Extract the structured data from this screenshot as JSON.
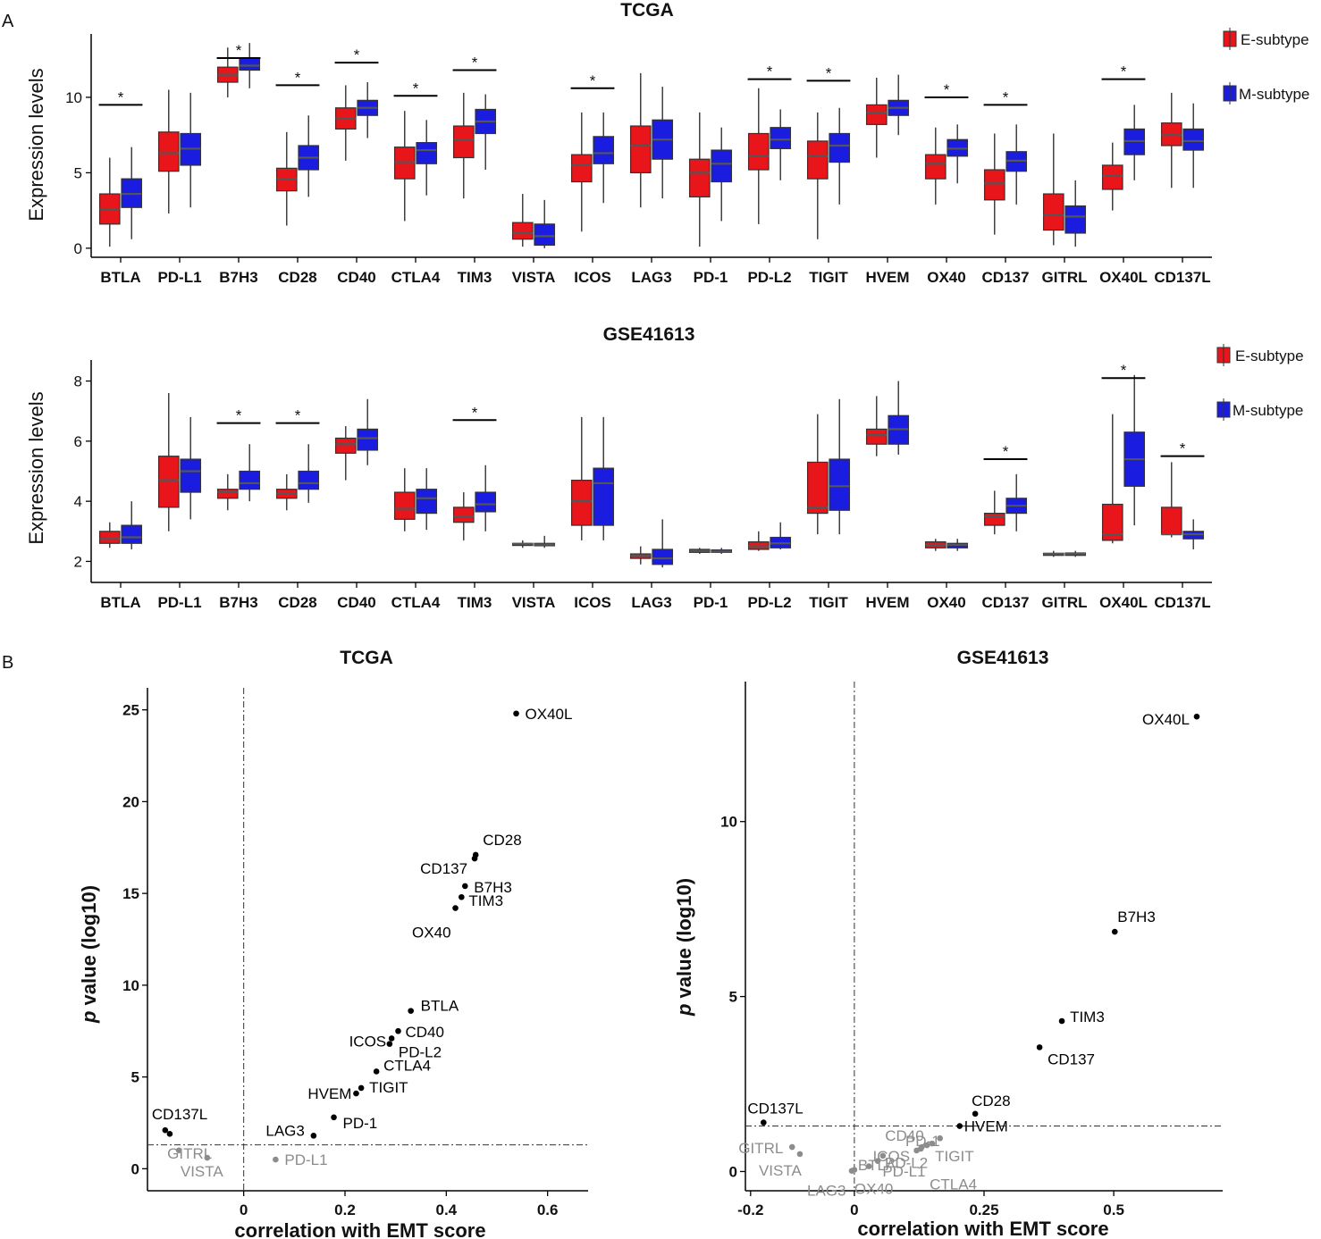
{
  "panels": {
    "a": "A",
    "b": "B"
  },
  "legend": {
    "items": [
      {
        "name": "E-subtype",
        "color": "#e8151b"
      },
      {
        "name": "M-subtype",
        "color": "#1a1de0"
      }
    ]
  },
  "colors": {
    "e": "#e8151b",
    "m": "#1a1de0",
    "sig": "#000000",
    "nonsig": "#8c8c8c"
  },
  "chart_data": [
    {
      "type": "box",
      "title": "TCGA",
      "ylabel": "Expression levels",
      "ylim": [
        -0.6,
        14.2
      ],
      "yticks": [
        0,
        5,
        10
      ],
      "categories": [
        "BTLA",
        "PD-L1",
        "B7H3",
        "CD28",
        "CD40",
        "CTLA4",
        "TIM3",
        "VISTA",
        "ICOS",
        "LAG3",
        "PD-1",
        "PD-L2",
        "TIGIT",
        "HVEM",
        "OX40",
        "CD137",
        "GITRL",
        "OX40L",
        "CD137L"
      ],
      "significant": [
        true,
        false,
        true,
        true,
        true,
        true,
        true,
        false,
        true,
        false,
        false,
        true,
        true,
        false,
        true,
        true,
        false,
        true,
        false
      ],
      "sig_y": [
        9.5,
        null,
        12.6,
        10.8,
        12.3,
        10.1,
        11.8,
        null,
        10.6,
        null,
        null,
        11.2,
        11.1,
        null,
        10.0,
        9.5,
        null,
        11.2,
        null
      ],
      "series": [
        {
          "name": "E-subtype",
          "boxes": [
            [
              0.1,
              1.6,
              2.6,
              3.6,
              6.0
            ],
            [
              2.3,
              5.1,
              6.3,
              7.7,
              10.5
            ],
            [
              10.0,
              11.0,
              11.5,
              12.0,
              13.3
            ],
            [
              1.5,
              3.8,
              4.6,
              5.3,
              7.7
            ],
            [
              5.8,
              7.9,
              8.6,
              9.3,
              10.8
            ],
            [
              1.8,
              4.6,
              5.7,
              6.7,
              9.1
            ],
            [
              3.3,
              6.0,
              7.2,
              8.1,
              10.3
            ],
            [
              0.1,
              0.6,
              1.0,
              1.7,
              3.6
            ],
            [
              1.1,
              4.4,
              5.5,
              6.2,
              9.0
            ],
            [
              2.7,
              5.0,
              6.8,
              8.1,
              11.6
            ],
            [
              0.1,
              3.4,
              5.0,
              5.9,
              9.0
            ],
            [
              1.6,
              5.2,
              6.1,
              7.6,
              10.6
            ],
            [
              0.6,
              4.6,
              6.1,
              7.1,
              9.0
            ],
            [
              6.0,
              8.2,
              9.0,
              9.5,
              11.3
            ],
            [
              2.9,
              4.6,
              5.6,
              6.2,
              8.0
            ],
            [
              0.9,
              3.2,
              4.3,
              5.2,
              7.6
            ],
            [
              0.2,
              1.2,
              2.2,
              3.6,
              7.6
            ],
            [
              2.5,
              3.9,
              4.8,
              5.5,
              7.0
            ],
            [
              4.0,
              6.8,
              7.5,
              8.3,
              10.3
            ]
          ]
        },
        {
          "name": "M-subtype",
          "boxes": [
            [
              0.6,
              2.7,
              3.6,
              4.6,
              6.7
            ],
            [
              2.7,
              5.5,
              6.6,
              7.6,
              10.3
            ],
            [
              10.6,
              11.8,
              12.1,
              12.6,
              13.6
            ],
            [
              3.4,
              5.2,
              6.0,
              6.8,
              8.8
            ],
            [
              7.3,
              8.8,
              9.3,
              9.8,
              11.0
            ],
            [
              3.5,
              5.6,
              6.5,
              7.0,
              8.5
            ],
            [
              5.2,
              7.6,
              8.4,
              9.2,
              10.2
            ],
            [
              0.0,
              0.2,
              0.8,
              1.6,
              3.2
            ],
            [
              3.0,
              5.6,
              6.3,
              7.4,
              9.0
            ],
            [
              3.3,
              5.9,
              7.2,
              8.5,
              10.7
            ],
            [
              1.8,
              4.4,
              5.6,
              6.5,
              8.0
            ],
            [
              4.5,
              6.6,
              7.2,
              8.0,
              9.2
            ],
            [
              2.9,
              5.7,
              6.8,
              7.6,
              9.3
            ],
            [
              7.5,
              8.8,
              9.3,
              9.8,
              11.5
            ],
            [
              4.3,
              6.1,
              6.6,
              7.2,
              8.2
            ],
            [
              2.9,
              5.1,
              5.8,
              6.4,
              8.2
            ],
            [
              0.1,
              1.0,
              2.1,
              2.8,
              4.5
            ],
            [
              4.5,
              6.2,
              7.1,
              7.9,
              9.5
            ],
            [
              4.0,
              6.5,
              7.1,
              7.9,
              9.6
            ]
          ]
        }
      ]
    },
    {
      "type": "box",
      "title": "GSE41613",
      "ylabel": "Expression levels",
      "ylim": [
        1.3,
        8.7
      ],
      "yticks": [
        2,
        4,
        6,
        8
      ],
      "categories": [
        "BTLA",
        "PD-L1",
        "B7H3",
        "CD28",
        "CD40",
        "CTLA4",
        "TIM3",
        "VISTA",
        "ICOS",
        "LAG3",
        "PD-1",
        "PD-L2",
        "TIGIT",
        "HVEM",
        "OX40",
        "CD137",
        "GITRL",
        "OX40L",
        "CD137L"
      ],
      "significant": [
        false,
        false,
        true,
        true,
        false,
        false,
        true,
        false,
        false,
        false,
        false,
        false,
        false,
        false,
        false,
        true,
        false,
        true,
        true
      ],
      "sig_y": [
        null,
        null,
        6.6,
        6.6,
        null,
        null,
        6.7,
        null,
        null,
        null,
        null,
        null,
        null,
        null,
        null,
        5.4,
        null,
        8.1,
        5.5
      ],
      "series": [
        {
          "name": "E-subtype",
          "boxes": [
            [
              2.45,
              2.6,
              2.75,
              3.0,
              3.3
            ],
            [
              3.0,
              3.8,
              4.7,
              5.5,
              7.6
            ],
            [
              3.7,
              4.1,
              4.3,
              4.4,
              4.9
            ],
            [
              3.7,
              4.1,
              4.25,
              4.4,
              4.9
            ],
            [
              4.7,
              5.6,
              5.9,
              6.1,
              6.5
            ],
            [
              3.0,
              3.4,
              3.75,
              4.3,
              5.1
            ],
            [
              2.7,
              3.3,
              3.5,
              3.8,
              4.3
            ],
            [
              2.45,
              2.53,
              2.58,
              2.6,
              2.7
            ],
            [
              2.7,
              3.2,
              4.0,
              4.7,
              6.8
            ],
            [
              1.9,
              2.1,
              2.2,
              2.25,
              2.5
            ],
            [
              2.25,
              2.3,
              2.35,
              2.4,
              2.45
            ],
            [
              2.35,
              2.4,
              2.5,
              2.65,
              3.0
            ],
            [
              2.9,
              3.6,
              3.8,
              5.3,
              6.9
            ],
            [
              5.5,
              5.9,
              6.2,
              6.4,
              7.5
            ],
            [
              2.35,
              2.45,
              2.55,
              2.65,
              2.75
            ],
            [
              2.9,
              3.2,
              3.5,
              3.6,
              4.35
            ],
            [
              2.15,
              2.2,
              2.25,
              2.27,
              2.35
            ],
            [
              2.6,
              2.7,
              2.9,
              3.9,
              6.9
            ],
            [
              2.8,
              2.9,
              2.9,
              3.8,
              5.3
            ]
          ]
        },
        {
          "name": "M-subtype",
          "boxes": [
            [
              2.4,
              2.6,
              2.8,
              3.2,
              4.0
            ],
            [
              3.4,
              4.3,
              5.0,
              5.4,
              6.8
            ],
            [
              4.0,
              4.4,
              4.6,
              5.0,
              5.9
            ],
            [
              3.95,
              4.4,
              4.6,
              5.0,
              5.9
            ],
            [
              5.2,
              5.7,
              6.1,
              6.4,
              7.4
            ],
            [
              3.05,
              3.6,
              4.1,
              4.4,
              5.1
            ],
            [
              3.0,
              3.65,
              3.9,
              4.3,
              5.2
            ],
            [
              2.45,
              2.52,
              2.56,
              2.6,
              2.85
            ],
            [
              2.7,
              3.2,
              4.6,
              5.1,
              6.8
            ],
            [
              1.8,
              1.9,
              2.1,
              2.4,
              3.4
            ],
            [
              2.25,
              2.3,
              2.33,
              2.38,
              2.45
            ],
            [
              2.4,
              2.45,
              2.6,
              2.8,
              3.3
            ],
            [
              2.9,
              3.7,
              4.5,
              5.4,
              7.4
            ],
            [
              5.55,
              5.9,
              6.4,
              6.85,
              8.0
            ],
            [
              2.35,
              2.45,
              2.55,
              2.6,
              2.75
            ],
            [
              3.0,
              3.6,
              3.85,
              4.1,
              4.9
            ],
            [
              2.15,
              2.2,
              2.25,
              2.28,
              2.35
            ],
            [
              3.2,
              4.5,
              5.4,
              6.3,
              8.2
            ],
            [
              2.4,
              2.75,
              2.9,
              3.0,
              3.4
            ]
          ]
        }
      ]
    },
    {
      "type": "scatter",
      "title": "TCGA",
      "xlabel": "correlation with EMT score",
      "ylabel_italic": "p",
      "ylabel_rest": " value (log10)",
      "xlim": [
        -0.19,
        0.68
      ],
      "ylim": [
        -1.2,
        26.2
      ],
      "xticks": [
        0,
        0.2,
        0.4,
        0.6
      ],
      "yticks": [
        0,
        5,
        10,
        15,
        20,
        25
      ],
      "vline": 0,
      "hline": 1.3,
      "points": [
        {
          "label": "OX40L",
          "x": 0.538,
          "y": 24.8,
          "sig": true
        },
        {
          "label": "CD28",
          "x": 0.458,
          "y": 17.1,
          "sig": true
        },
        {
          "label": "CD137",
          "x": 0.456,
          "y": 16.9,
          "sig": true
        },
        {
          "label": "B7H3",
          "x": 0.437,
          "y": 15.4,
          "sig": true
        },
        {
          "label": "TIM3",
          "x": 0.43,
          "y": 14.8,
          "sig": true
        },
        {
          "label": "OX40",
          "x": 0.418,
          "y": 14.2,
          "sig": true
        },
        {
          "label": "BTLA",
          "x": 0.33,
          "y": 8.6,
          "sig": true
        },
        {
          "label": "CD40",
          "x": 0.305,
          "y": 7.5,
          "sig": true
        },
        {
          "label": "ICOS",
          "x": 0.292,
          "y": 7.1,
          "sig": true
        },
        {
          "label": "PD-L2",
          "x": 0.288,
          "y": 6.8,
          "sig": true
        },
        {
          "label": "CTLA4",
          "x": 0.262,
          "y": 5.3,
          "sig": true
        },
        {
          "label": "TIGIT",
          "x": 0.232,
          "y": 4.4,
          "sig": true
        },
        {
          "label": "HVEM",
          "x": 0.222,
          "y": 4.1,
          "sig": true
        },
        {
          "label": "PD-1",
          "x": 0.178,
          "y": 2.8,
          "sig": true
        },
        {
          "label": "LAG3",
          "x": 0.138,
          "y": 1.8,
          "sig": true
        },
        {
          "label": "CD137L",
          "x": -0.155,
          "y": 2.1,
          "sig": true
        },
        {
          "label": "",
          "x": -0.146,
          "y": 1.9,
          "sig": true
        },
        {
          "label": "GITRL",
          "x": -0.128,
          "y": 1.0,
          "sig": false
        },
        {
          "label": "VISTA",
          "x": -0.072,
          "y": 0.6,
          "sig": false
        },
        {
          "label": "PD-L1",
          "x": 0.063,
          "y": 0.5,
          "sig": false
        }
      ]
    },
    {
      "type": "scatter",
      "title": "GSE41613",
      "xlabel": "correlation with EMT score",
      "ylabel_italic": "p",
      "ylabel_rest": " value (log10)",
      "xlim": [
        -0.21,
        0.71
      ],
      "ylim": [
        -0.55,
        14.0
      ],
      "xticks": [
        -0.2,
        0,
        0.25,
        0.5
      ],
      "xticklabels": [
        "-0.2",
        "0",
        "0.25",
        "0.5"
      ],
      "yticks": [
        0,
        5,
        10
      ],
      "vline": 0,
      "hline": 1.3,
      "points": [
        {
          "label": "OX40L",
          "x": 0.66,
          "y": 13.0,
          "sig": true
        },
        {
          "label": "B7H3",
          "x": 0.502,
          "y": 6.85,
          "sig": true
        },
        {
          "label": "TIM3",
          "x": 0.4,
          "y": 4.3,
          "sig": true
        },
        {
          "label": "CD137",
          "x": 0.357,
          "y": 3.55,
          "sig": true
        },
        {
          "label": "CD28",
          "x": 0.233,
          "y": 1.65,
          "sig": true
        },
        {
          "label": "HVEM",
          "x": 0.203,
          "y": 1.3,
          "sig": true
        },
        {
          "label": "CD137L",
          "x": -0.175,
          "y": 1.4,
          "sig": true
        },
        {
          "label": "CD40",
          "x": 0.165,
          "y": 0.95,
          "sig": false
        },
        {
          "label": "PD-1",
          "x": 0.15,
          "y": 0.8,
          "sig": false
        },
        {
          "label": "TIGIT",
          "x": 0.14,
          "y": 0.75,
          "sig": false
        },
        {
          "label": "",
          "x": 0.128,
          "y": 0.65,
          "sig": false
        },
        {
          "label": "ICOS",
          "x": 0.12,
          "y": 0.6,
          "sig": false
        },
        {
          "label": "PD-L1",
          "x": 0.13,
          "y": 0.7,
          "sig": false
        },
        {
          "label": "GITRL",
          "x": -0.12,
          "y": 0.7,
          "sig": false
        },
        {
          "label": "VISTA",
          "x": -0.105,
          "y": 0.5,
          "sig": false
        },
        {
          "label": "BTLA",
          "x": 0.055,
          "y": 0.45,
          "sig": false
        },
        {
          "label": "PD-L2",
          "x": 0.045,
          "y": 0.3,
          "sig": false
        },
        {
          "label": "CTLA4",
          "x": 0.028,
          "y": 0.15,
          "sig": false
        },
        {
          "label": "OX40",
          "x": 0.0,
          "y": 0.05,
          "sig": false
        },
        {
          "label": "LAG3",
          "x": -0.005,
          "y": 0.02,
          "sig": false
        }
      ]
    }
  ]
}
